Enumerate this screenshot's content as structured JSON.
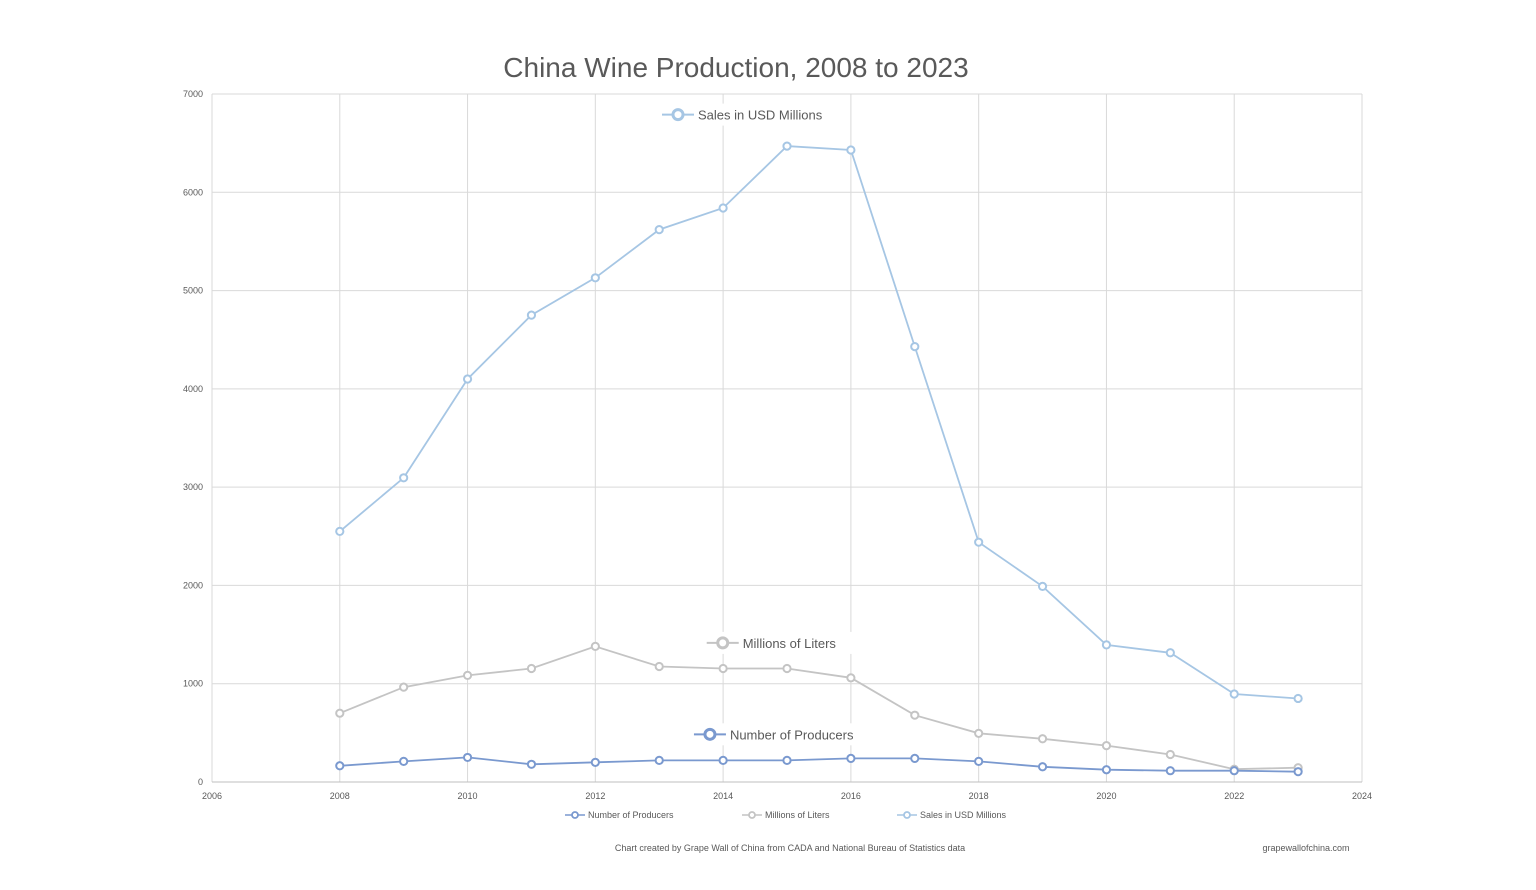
{
  "chart_data": {
    "type": "scatter",
    "title": "China Wine Production, 2008 to 2023",
    "xlabel": "",
    "ylabel": "",
    "xlim": [
      2006,
      2024
    ],
    "ylim": [
      0,
      7000
    ],
    "xticks": [
      "2006",
      "2008",
      "2010",
      "2012",
      "2014",
      "2016",
      "2018",
      "2020",
      "2022",
      "2024"
    ],
    "yticks": [
      "0",
      "1000",
      "2000",
      "3000",
      "4000",
      "5000",
      "6000",
      "7000"
    ],
    "grid": true,
    "legend_position": "bottom",
    "x": [
      2008,
      2009,
      2010,
      2011,
      2012,
      2013,
      2014,
      2015,
      2016,
      2017,
      2018,
      2019,
      2020,
      2021,
      2022,
      2023
    ],
    "series": [
      {
        "name": "Number of Producers",
        "color": "#7a99cf",
        "values": [
          165,
          210,
          250,
          180,
          200,
          220,
          220,
          220,
          240,
          240,
          210,
          155,
          125,
          115,
          115,
          105
        ]
      },
      {
        "name": "Millions of Liters",
        "color": "#c4c4c4",
        "values": [
          700,
          965,
          1085,
          1155,
          1380,
          1175,
          1155,
          1155,
          1060,
          680,
          495,
          440,
          370,
          280,
          130,
          145
        ]
      },
      {
        "name": "Sales in USD Millions",
        "color": "#a6c6e4",
        "values": [
          2550,
          3095,
          4100,
          4750,
          5130,
          5620,
          5840,
          6470,
          6430,
          4430,
          2440,
          1990,
          1395,
          1315,
          895,
          850
        ]
      }
    ],
    "annotations": [
      "Sales in USD Millions",
      "Millions of Liters",
      "Number of Producers"
    ]
  },
  "footer": {
    "credit": "Chart created by Grape Wall of China from CADA and  National Bureau of Statistics data",
    "site": "grapewallofchina.com"
  }
}
